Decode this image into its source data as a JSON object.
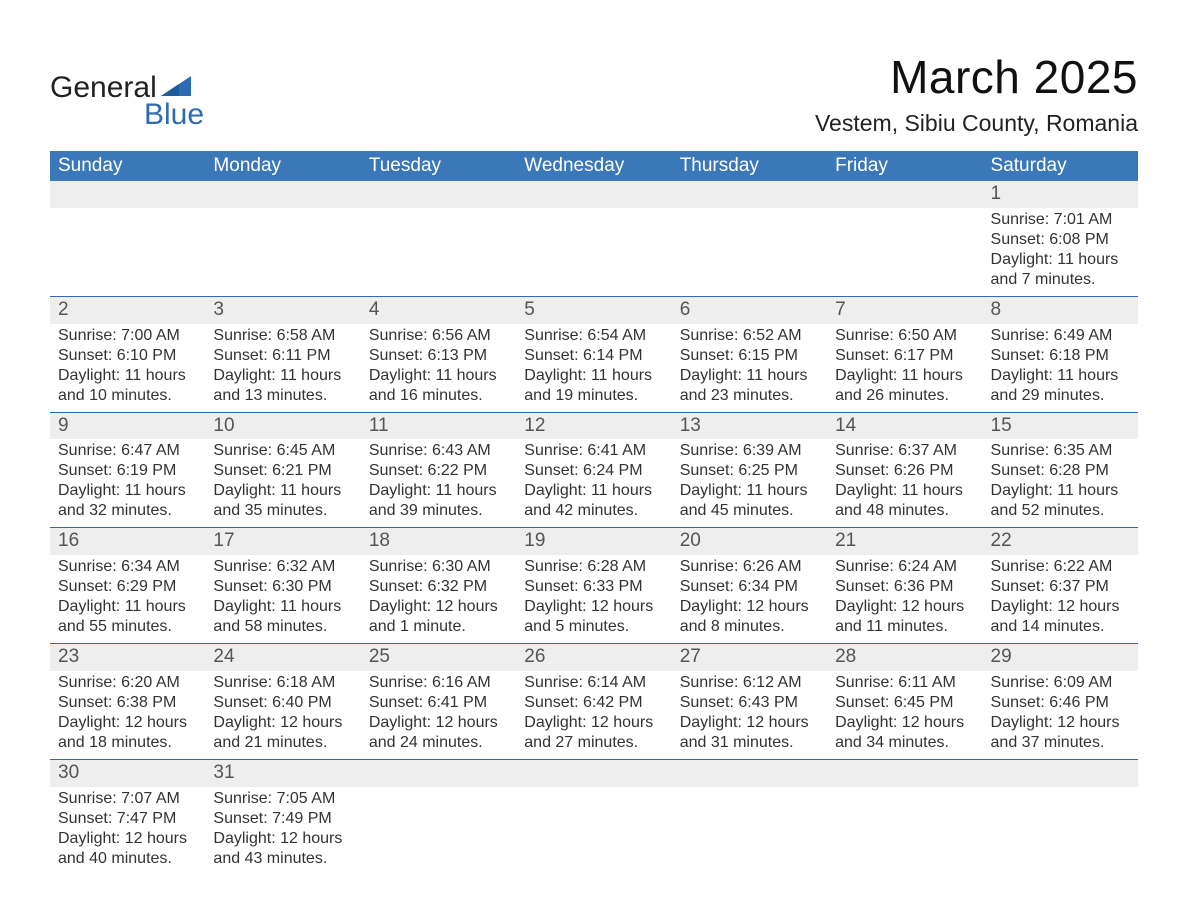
{
  "logo": {
    "word1": "General",
    "word2": "Blue",
    "accent": "#2d6cb3"
  },
  "title": "March 2025",
  "location": "Vestem, Sibiu County, Romania",
  "weekdays": [
    "Sunday",
    "Monday",
    "Tuesday",
    "Wednesday",
    "Thursday",
    "Friday",
    "Saturday"
  ],
  "colors": {
    "header_bg": "#3a78b9",
    "header_text": "#ffffff",
    "daynum_bg": "#eeeeee",
    "rule": "#2d6cb3",
    "body_text": "#333333"
  },
  "weeks": [
    [
      null,
      null,
      null,
      null,
      null,
      null,
      {
        "n": "1",
        "sunrise": "Sunrise: 7:01 AM",
        "sunset": "Sunset: 6:08 PM",
        "daylight1": "Daylight: 11 hours",
        "daylight2": "and 7 minutes."
      }
    ],
    [
      {
        "n": "2",
        "sunrise": "Sunrise: 7:00 AM",
        "sunset": "Sunset: 6:10 PM",
        "daylight1": "Daylight: 11 hours",
        "daylight2": "and 10 minutes."
      },
      {
        "n": "3",
        "sunrise": "Sunrise: 6:58 AM",
        "sunset": "Sunset: 6:11 PM",
        "daylight1": "Daylight: 11 hours",
        "daylight2": "and 13 minutes."
      },
      {
        "n": "4",
        "sunrise": "Sunrise: 6:56 AM",
        "sunset": "Sunset: 6:13 PM",
        "daylight1": "Daylight: 11 hours",
        "daylight2": "and 16 minutes."
      },
      {
        "n": "5",
        "sunrise": "Sunrise: 6:54 AM",
        "sunset": "Sunset: 6:14 PM",
        "daylight1": "Daylight: 11 hours",
        "daylight2": "and 19 minutes."
      },
      {
        "n": "6",
        "sunrise": "Sunrise: 6:52 AM",
        "sunset": "Sunset: 6:15 PM",
        "daylight1": "Daylight: 11 hours",
        "daylight2": "and 23 minutes."
      },
      {
        "n": "7",
        "sunrise": "Sunrise: 6:50 AM",
        "sunset": "Sunset: 6:17 PM",
        "daylight1": "Daylight: 11 hours",
        "daylight2": "and 26 minutes."
      },
      {
        "n": "8",
        "sunrise": "Sunrise: 6:49 AM",
        "sunset": "Sunset: 6:18 PM",
        "daylight1": "Daylight: 11 hours",
        "daylight2": "and 29 minutes."
      }
    ],
    [
      {
        "n": "9",
        "sunrise": "Sunrise: 6:47 AM",
        "sunset": "Sunset: 6:19 PM",
        "daylight1": "Daylight: 11 hours",
        "daylight2": "and 32 minutes."
      },
      {
        "n": "10",
        "sunrise": "Sunrise: 6:45 AM",
        "sunset": "Sunset: 6:21 PM",
        "daylight1": "Daylight: 11 hours",
        "daylight2": "and 35 minutes."
      },
      {
        "n": "11",
        "sunrise": "Sunrise: 6:43 AM",
        "sunset": "Sunset: 6:22 PM",
        "daylight1": "Daylight: 11 hours",
        "daylight2": "and 39 minutes."
      },
      {
        "n": "12",
        "sunrise": "Sunrise: 6:41 AM",
        "sunset": "Sunset: 6:24 PM",
        "daylight1": "Daylight: 11 hours",
        "daylight2": "and 42 minutes."
      },
      {
        "n": "13",
        "sunrise": "Sunrise: 6:39 AM",
        "sunset": "Sunset: 6:25 PM",
        "daylight1": "Daylight: 11 hours",
        "daylight2": "and 45 minutes."
      },
      {
        "n": "14",
        "sunrise": "Sunrise: 6:37 AM",
        "sunset": "Sunset: 6:26 PM",
        "daylight1": "Daylight: 11 hours",
        "daylight2": "and 48 minutes."
      },
      {
        "n": "15",
        "sunrise": "Sunrise: 6:35 AM",
        "sunset": "Sunset: 6:28 PM",
        "daylight1": "Daylight: 11 hours",
        "daylight2": "and 52 minutes."
      }
    ],
    [
      {
        "n": "16",
        "sunrise": "Sunrise: 6:34 AM",
        "sunset": "Sunset: 6:29 PM",
        "daylight1": "Daylight: 11 hours",
        "daylight2": "and 55 minutes."
      },
      {
        "n": "17",
        "sunrise": "Sunrise: 6:32 AM",
        "sunset": "Sunset: 6:30 PM",
        "daylight1": "Daylight: 11 hours",
        "daylight2": "and 58 minutes."
      },
      {
        "n": "18",
        "sunrise": "Sunrise: 6:30 AM",
        "sunset": "Sunset: 6:32 PM",
        "daylight1": "Daylight: 12 hours",
        "daylight2": "and 1 minute."
      },
      {
        "n": "19",
        "sunrise": "Sunrise: 6:28 AM",
        "sunset": "Sunset: 6:33 PM",
        "daylight1": "Daylight: 12 hours",
        "daylight2": "and 5 minutes."
      },
      {
        "n": "20",
        "sunrise": "Sunrise: 6:26 AM",
        "sunset": "Sunset: 6:34 PM",
        "daylight1": "Daylight: 12 hours",
        "daylight2": "and 8 minutes."
      },
      {
        "n": "21",
        "sunrise": "Sunrise: 6:24 AM",
        "sunset": "Sunset: 6:36 PM",
        "daylight1": "Daylight: 12 hours",
        "daylight2": "and 11 minutes."
      },
      {
        "n": "22",
        "sunrise": "Sunrise: 6:22 AM",
        "sunset": "Sunset: 6:37 PM",
        "daylight1": "Daylight: 12 hours",
        "daylight2": "and 14 minutes."
      }
    ],
    [
      {
        "n": "23",
        "sunrise": "Sunrise: 6:20 AM",
        "sunset": "Sunset: 6:38 PM",
        "daylight1": "Daylight: 12 hours",
        "daylight2": "and 18 minutes."
      },
      {
        "n": "24",
        "sunrise": "Sunrise: 6:18 AM",
        "sunset": "Sunset: 6:40 PM",
        "daylight1": "Daylight: 12 hours",
        "daylight2": "and 21 minutes."
      },
      {
        "n": "25",
        "sunrise": "Sunrise: 6:16 AM",
        "sunset": "Sunset: 6:41 PM",
        "daylight1": "Daylight: 12 hours",
        "daylight2": "and 24 minutes."
      },
      {
        "n": "26",
        "sunrise": "Sunrise: 6:14 AM",
        "sunset": "Sunset: 6:42 PM",
        "daylight1": "Daylight: 12 hours",
        "daylight2": "and 27 minutes."
      },
      {
        "n": "27",
        "sunrise": "Sunrise: 6:12 AM",
        "sunset": "Sunset: 6:43 PM",
        "daylight1": "Daylight: 12 hours",
        "daylight2": "and 31 minutes."
      },
      {
        "n": "28",
        "sunrise": "Sunrise: 6:11 AM",
        "sunset": "Sunset: 6:45 PM",
        "daylight1": "Daylight: 12 hours",
        "daylight2": "and 34 minutes."
      },
      {
        "n": "29",
        "sunrise": "Sunrise: 6:09 AM",
        "sunset": "Sunset: 6:46 PM",
        "daylight1": "Daylight: 12 hours",
        "daylight2": "and 37 minutes."
      }
    ],
    [
      {
        "n": "30",
        "sunrise": "Sunrise: 7:07 AM",
        "sunset": "Sunset: 7:47 PM",
        "daylight1": "Daylight: 12 hours",
        "daylight2": "and 40 minutes."
      },
      {
        "n": "31",
        "sunrise": "Sunrise: 7:05 AM",
        "sunset": "Sunset: 7:49 PM",
        "daylight1": "Daylight: 12 hours",
        "daylight2": "and 43 minutes."
      },
      null,
      null,
      null,
      null,
      null
    ]
  ]
}
